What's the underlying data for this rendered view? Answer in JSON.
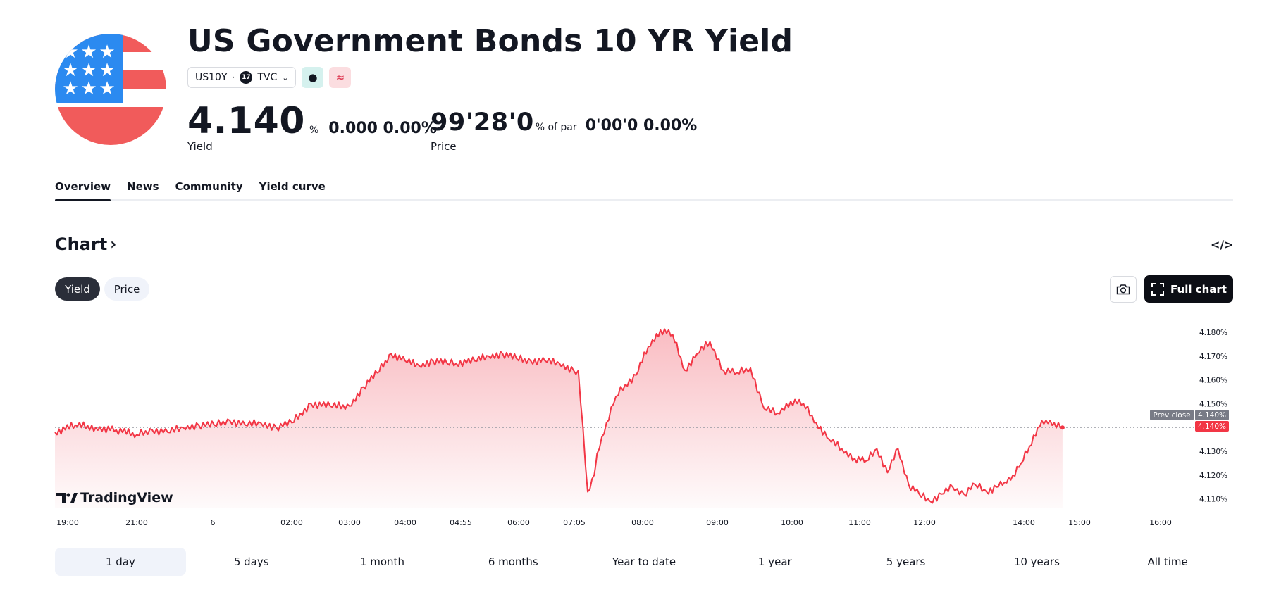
{
  "header": {
    "title": "US Government Bonds 10 YR Yield",
    "symbol": "US10Y",
    "exchange": "TVC",
    "exchange_logo_text": "17",
    "badge_market_glyph": "●",
    "badge_bond_glyph": "≈"
  },
  "quote_yield": {
    "value": "4.140",
    "unit": "%",
    "change": "0.000 0.00%",
    "label": "Yield"
  },
  "quote_price": {
    "value": "99'28'0",
    "unit": "% of par",
    "change": "0'00'0 0.00%",
    "label": "Price"
  },
  "tabs": [
    {
      "label": "Overview",
      "active": true
    },
    {
      "label": "News",
      "active": false
    },
    {
      "label": "Community",
      "active": false
    },
    {
      "label": "Yield curve",
      "active": false
    }
  ],
  "chart_section": {
    "title": "Chart",
    "title_arrow": "›",
    "embed_label": "</>",
    "toggle": [
      "Yield",
      "Price"
    ],
    "full_chart_label": "Full chart",
    "watermark": "TradingView"
  },
  "icons": {
    "flag": "us-flag-icon",
    "camera": "camera-icon",
    "expand": "expand-icon",
    "embed": "code-embed-icon",
    "chevron": "chevron-down-icon"
  },
  "colors": {
    "line": "#f23645",
    "fill_top": "#f7a6ae",
    "prev_close_tag": "#787b86",
    "last_price_tag": "#f23645",
    "flag_red": "#f15b5b",
    "flag_blue": "#2b8af0"
  },
  "chart_data": {
    "type": "area",
    "title": "",
    "xlabel": "",
    "ylabel": "",
    "ylim": [
      4.104,
      4.184
    ],
    "y_ticks": [
      "4.180%",
      "4.170%",
      "4.160%",
      "4.150%",
      "4.130%",
      "4.120%",
      "4.110%"
    ],
    "x_ticks": [
      "19:00",
      "21:00",
      "6",
      "02:00",
      "03:00",
      "04:00",
      "04:55",
      "06:00",
      "07:05",
      "08:00",
      "09:00",
      "10:00",
      "11:00",
      "12:00",
      "14:00",
      "15:00",
      "16:00"
    ],
    "prev_close": {
      "label": "Prev close",
      "value": "4.140%"
    },
    "last_value": "4.140%",
    "series": [
      {
        "x": [
          "19:00",
          "19:30",
          "20:00",
          "20:30",
          "21:00",
          "21:30",
          "22:00",
          "22:30",
          "23:00",
          "23:30",
          "00:00",
          "00:30",
          "01:00",
          "01:30",
          "02:00",
          "02:20",
          "02:40",
          "03:00",
          "03:15",
          "03:30",
          "03:45",
          "04:00",
          "04:15",
          "04:30",
          "04:45",
          "04:55",
          "05:15",
          "05:30",
          "05:45",
          "06:00",
          "06:15",
          "06:30",
          "06:45",
          "07:00",
          "07:05",
          "07:15",
          "07:22",
          "07:25",
          "07:35",
          "07:45",
          "07:55",
          "08:05",
          "08:15",
          "08:25",
          "08:35",
          "08:45",
          "08:55",
          "09:05",
          "09:15",
          "09:25",
          "09:35",
          "09:45",
          "09:55",
          "10:05",
          "10:15",
          "10:25",
          "10:35",
          "10:45",
          "10:55",
          "11:05",
          "11:15",
          "11:25",
          "11:35",
          "11:45",
          "11:55",
          "12:05",
          "12:15",
          "12:25",
          "12:35",
          "12:45",
          "12:55",
          "13:05",
          "13:15",
          "13:25",
          "13:35",
          "13:45",
          "13:55",
          "14:05",
          "14:15",
          "14:25"
        ],
        "values": [
          4.138,
          4.141,
          4.14,
          4.139,
          4.137,
          4.139,
          4.138,
          4.14,
          4.141,
          4.141,
          4.143,
          4.141,
          4.142,
          4.14,
          4.142,
          4.15,
          4.149,
          4.149,
          4.157,
          4.163,
          4.171,
          4.168,
          4.166,
          4.168,
          4.167,
          4.167,
          4.168,
          4.17,
          4.171,
          4.169,
          4.168,
          4.168,
          4.167,
          4.164,
          4.164,
          4.113,
          4.12,
          4.129,
          4.142,
          4.153,
          4.158,
          4.162,
          4.174,
          4.181,
          4.179,
          4.164,
          4.171,
          4.176,
          4.164,
          4.163,
          4.165,
          4.148,
          4.146,
          4.151,
          4.15,
          4.142,
          4.135,
          4.131,
          4.127,
          4.126,
          4.131,
          4.121,
          4.131,
          4.116,
          4.112,
          4.109,
          4.112,
          4.115,
          4.112,
          4.116,
          4.113,
          4.115,
          4.117,
          4.12,
          4.125,
          4.132,
          4.14,
          4.143,
          4.142,
          4.14
        ]
      }
    ]
  },
  "ranges": [
    {
      "label": "1 day",
      "active": true
    },
    {
      "label": "5 days",
      "active": false
    },
    {
      "label": "1 month",
      "active": false
    },
    {
      "label": "6 months",
      "active": false
    },
    {
      "label": "Year to date",
      "active": false
    },
    {
      "label": "1 year",
      "active": false
    },
    {
      "label": "5 years",
      "active": false
    },
    {
      "label": "10 years",
      "active": false
    },
    {
      "label": "All time",
      "active": false
    }
  ]
}
